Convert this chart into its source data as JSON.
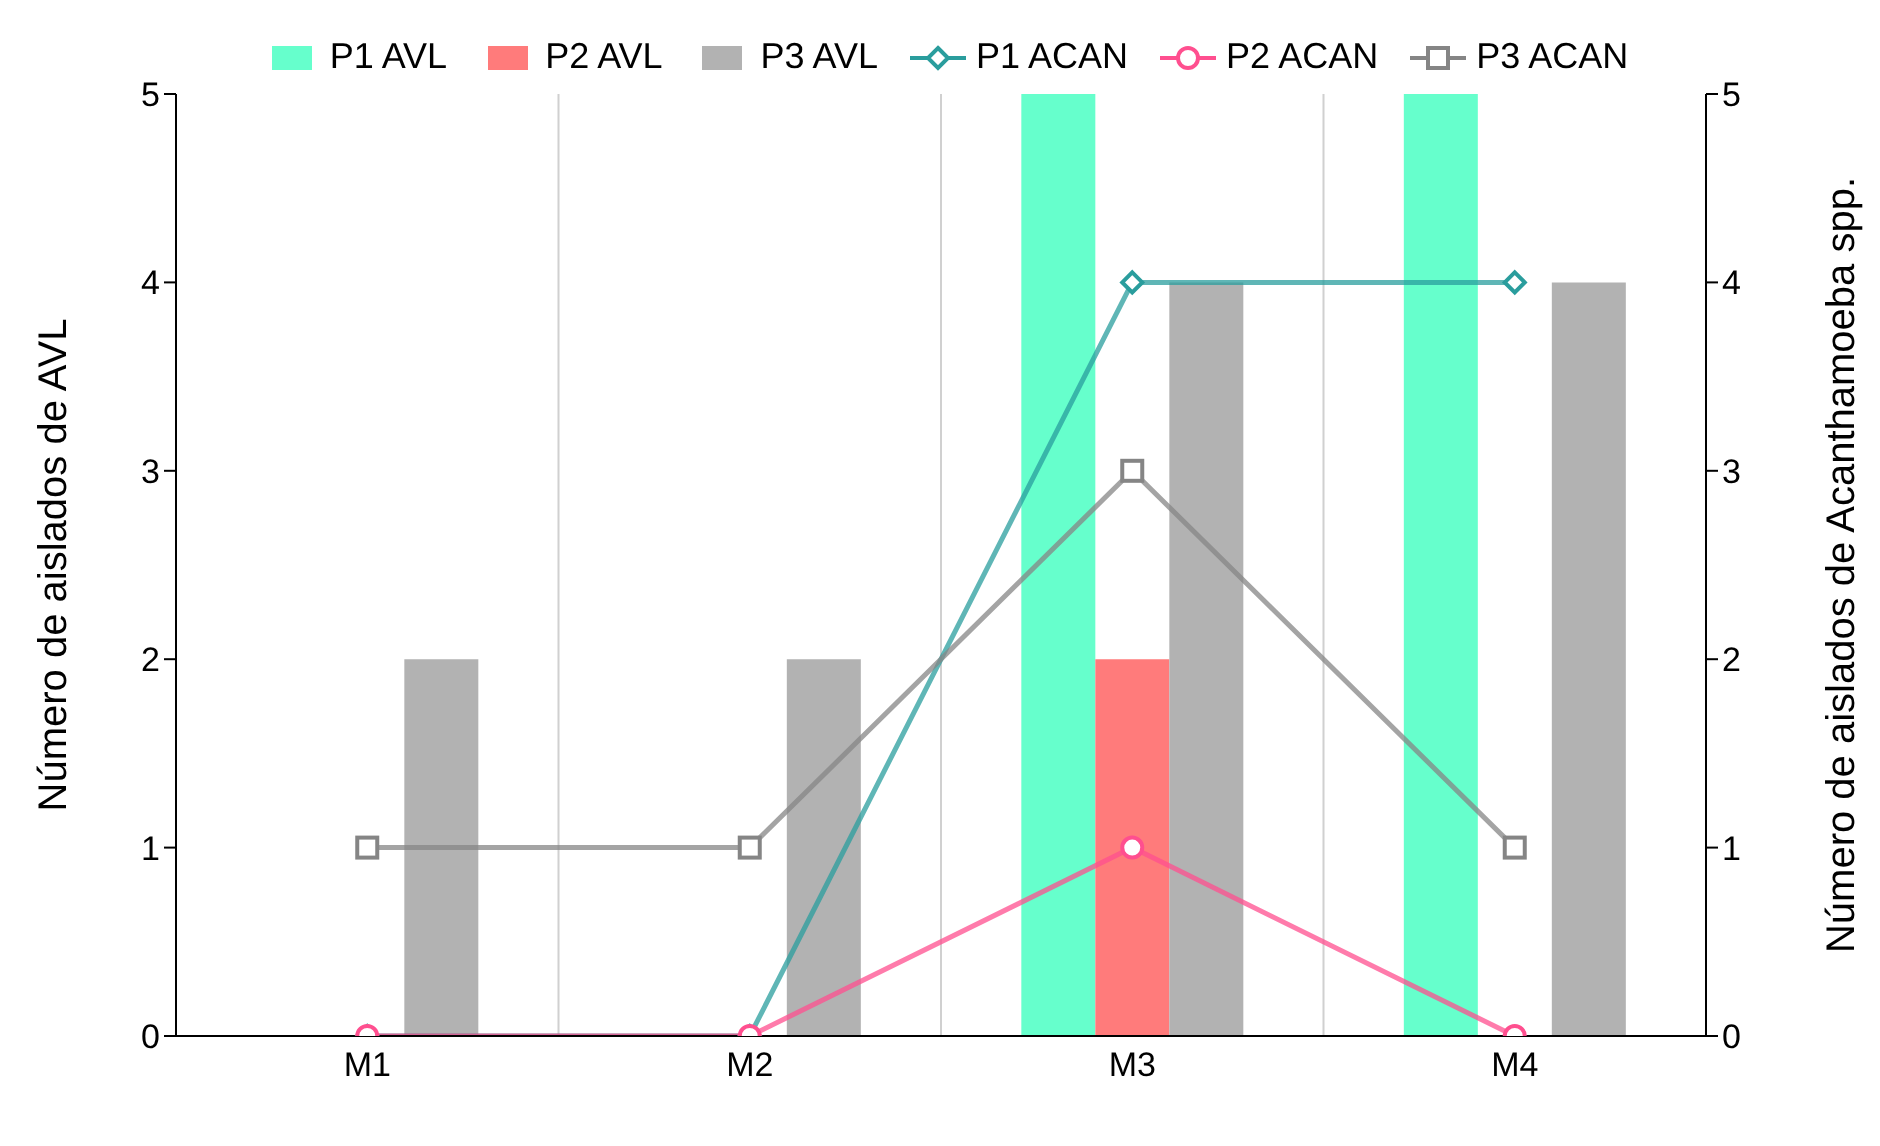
{
  "chart_data": {
    "type": "bar",
    "categories": [
      "M1",
      "M2",
      "M3",
      "M4"
    ],
    "ylabel": "Número de aislados de AVL",
    "y2label": "Número de aislados de Acanthamoeba spp.",
    "ylim": [
      0,
      5
    ],
    "yticks": [
      0,
      1,
      2,
      3,
      4,
      5
    ],
    "y2lim": [
      0,
      5
    ],
    "y2ticks": [
      0,
      1,
      2,
      3,
      4,
      5
    ],
    "grid": "x",
    "legend": "top",
    "series": [
      {
        "name": "P1 AVL",
        "color": "#66ffcc",
        "values": [
          0,
          0,
          5,
          5
        ]
      },
      {
        "name": "P2 AVL",
        "color": "#ff7b7b",
        "values": [
          0,
          0,
          2,
          0
        ]
      },
      {
        "name": "P3 AVL",
        "color": "#b2b2b2",
        "values": [
          2,
          2,
          4,
          4
        ]
      },
      {
        "name": "P1 ACAN",
        "type": "line",
        "axis": "y2",
        "marker": "diamond",
        "color": "#2a9d9d",
        "values": [
          0,
          0,
          4,
          4
        ]
      },
      {
        "name": "P2 ACAN",
        "type": "line",
        "axis": "y2",
        "marker": "circle",
        "color": "#ff4f8f",
        "values": [
          0,
          0,
          1,
          0
        ]
      },
      {
        "name": "P3 ACAN",
        "type": "line",
        "axis": "y2",
        "marker": "square",
        "color": "#858585",
        "values": [
          1,
          1,
          3,
          1
        ]
      }
    ]
  }
}
